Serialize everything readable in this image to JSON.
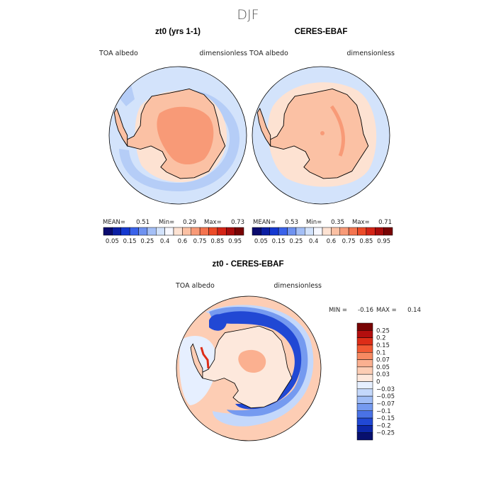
{
  "figure": {
    "season": "DJF"
  },
  "panels": [
    {
      "title": "zt0 (yrs 1-1)",
      "variable": "TOA albedo",
      "units": "dimensionless",
      "stats": {
        "mean_label": "MEAN=",
        "mean": "0.51",
        "min_label": "Min=",
        "min": "0.29",
        "max_label": "Max=",
        "max": "0.73"
      }
    },
    {
      "title": "CERES-EBAF",
      "variable": "TOA albedo",
      "units": "dimensionless",
      "stats": {
        "mean_label": "MEAN=",
        "mean": "0.53",
        "min_label": "Min=",
        "min": "0.35",
        "max_label": "Max=",
        "max": "0.71"
      }
    }
  ],
  "abs_colorbar": {
    "tick_labels": [
      "0.05",
      "0.15",
      "0.25",
      "0.4",
      "0.6",
      "0.75",
      "0.85",
      "0.95"
    ],
    "colors": [
      "#0a0a6e",
      "#0b1ea3",
      "#1438d0",
      "#3a62ea",
      "#6f92f0",
      "#a4bff6",
      "#d2e2fb",
      "#f7f8ff",
      "#fde2d2",
      "#fbc1a4",
      "#f89a77",
      "#f4744f",
      "#ec4b28",
      "#d42416",
      "#a80c0c",
      "#780404"
    ]
  },
  "diff_panel": {
    "title": "zt0 - CERES-EBAF",
    "variable": "TOA albedo",
    "units": "dimensionless",
    "stats": {
      "min_label": "MIN =",
      "min": "-0.16",
      "max_label": "MAX =",
      "max": "0.14"
    },
    "colorbar": {
      "tick_labels": [
        "0.25",
        "0.2",
        "0.15",
        "0.1",
        "0.07",
        "0.05",
        "0.03",
        "0",
        "−0.03",
        "−0.05",
        "−0.07",
        "−0.1",
        "−0.15",
        "−0.2",
        "−0.25"
      ],
      "colors": [
        "#780404",
        "#b30e0e",
        "#dd2d18",
        "#f25a34",
        "#f78a62",
        "#fbb090",
        "#fdcdb4",
        "#fee8dc",
        "#e6efff",
        "#c4d8fb",
        "#a0bdf6",
        "#759af0",
        "#4a72e6",
        "#2148d4",
        "#0d27a8",
        "#08106e"
      ]
    }
  },
  "map_colors": {
    "ocean_light": "#d3e3fb",
    "ocean_mid": "#b5cdf7",
    "sea_ice": "#fde2d2",
    "land_mid": "#fbc1a4",
    "land_high": "#f89a77",
    "diff_neg_strong": "#2148d4",
    "diff_neg": "#759af0",
    "diff_neg_light": "#c4d8fb",
    "diff_pos_light": "#fdcdb4",
    "diff_pos": "#f78a62",
    "diff_pos_strong": "#dd2d18"
  }
}
